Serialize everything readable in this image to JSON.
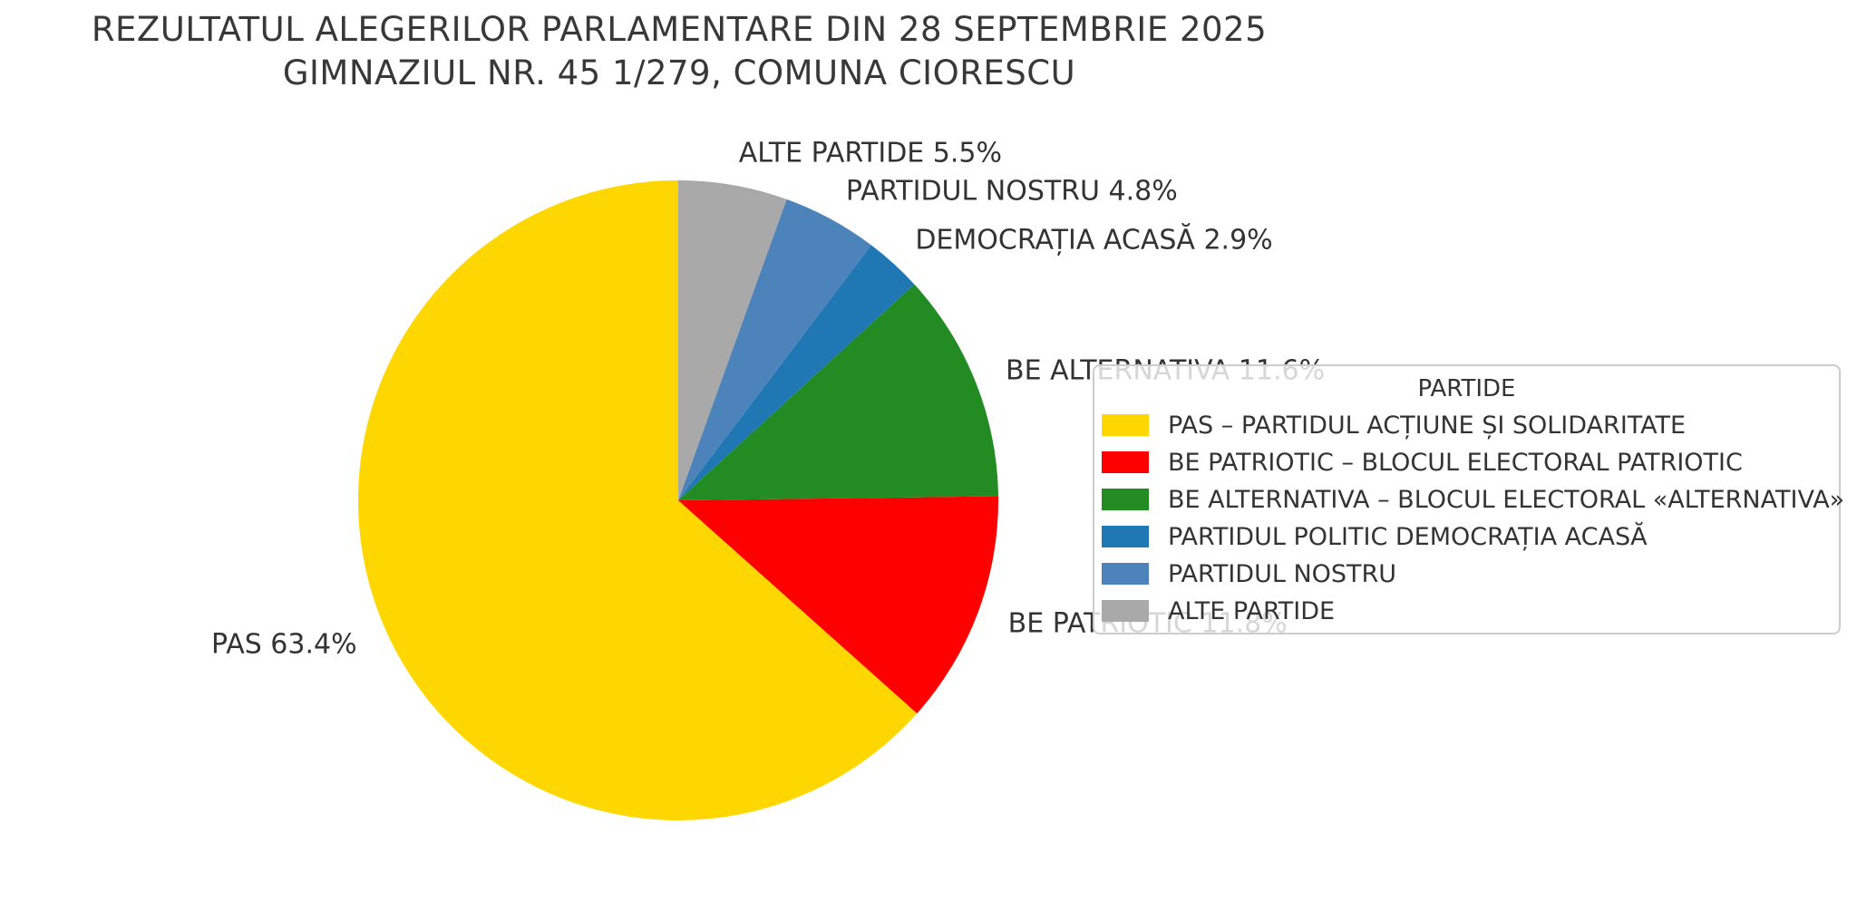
{
  "title": {
    "line1": "REZULTATUL ALEGERILOR PARLAMENTARE DIN 28 SEPTEMBRIE 2025",
    "line2": "GIMNAZIUL NR. 45 1/279, COMUNA CIORESCU"
  },
  "legend": {
    "title": "PARTIDE",
    "entries": [
      {
        "id": "pas",
        "label": "PAS – PARTIDUL ACȚIUNE ȘI SOLIDARITATE",
        "color": "#FFD700"
      },
      {
        "id": "be-patriotic",
        "label": "BE PATRIOTIC – BLOCUL ELECTORAL PATRIOTIC",
        "color": "#FF0000"
      },
      {
        "id": "be-alternativa",
        "label": "BE ALTERNATIVA – BLOCUL ELECTORAL «ALTERNATIVA»",
        "color": "#228B22"
      },
      {
        "id": "democratia-acasa",
        "label": "PARTIDUL POLITIC DEMOCRAȚIA ACASĂ",
        "color": "#1F77B4"
      },
      {
        "id": "partidul-nostru",
        "label": "PARTIDUL NOSTRU",
        "color": "#4C83BA"
      },
      {
        "id": "alte-partide",
        "label": "ALTE PARTIDE",
        "color": "#A9A9A9"
      }
    ]
  },
  "chart_data": {
    "type": "pie",
    "title": "REZULTATUL ALEGERILOR PARLAMENTARE DIN 28 SEPTEMBRIE 2025 — GIMNAZIUL NR. 45 1/279, COMUNA CIORESCU",
    "start_angle_deg": 90,
    "direction": "counterclockwise",
    "legend_position": "right",
    "legend_title": "PARTIDE",
    "slices": [
      {
        "id": "pas",
        "name": "PAS",
        "full_name": "PAS – PARTIDUL ACȚIUNE ȘI SOLIDARITATE",
        "value_pct": 63.4,
        "label": "PAS 63.4%",
        "color": "#FFD700"
      },
      {
        "id": "be-patriotic",
        "name": "BE PATRIOTIC",
        "full_name": "BE PATRIOTIC – BLOCUL ELECTORAL PATRIOTIC",
        "value_pct": 11.8,
        "label": "BE PATRIOTIC 11.8%",
        "color": "#FF0000"
      },
      {
        "id": "be-alternativa",
        "name": "BE ALTERNATIVA",
        "full_name": "BE ALTERNATIVA – BLOCUL ELECTORAL «ALTERNATIVA»",
        "value_pct": 11.6,
        "label": "BE ALTERNATIVA 11.6%",
        "color": "#228B22"
      },
      {
        "id": "democratia-acasa",
        "name": "DEMOCRAȚIA ACASĂ",
        "full_name": "PARTIDUL POLITIC DEMOCRAȚIA ACASĂ",
        "value_pct": 2.9,
        "label": "DEMOCRAȚIA ACASĂ 2.9%",
        "color": "#1F77B4"
      },
      {
        "id": "partidul-nostru",
        "name": "PARTIDUL NOSTRU",
        "full_name": "PARTIDUL NOSTRU",
        "value_pct": 4.8,
        "label": "PARTIDUL NOSTRU 4.8%",
        "color": "#4C83BA"
      },
      {
        "id": "alte-partide",
        "name": "ALTE PARTIDE",
        "full_name": "ALTE PARTIDE",
        "value_pct": 5.5,
        "label": "ALTE PARTIDE 5.5%",
        "color": "#A9A9A9"
      }
    ]
  }
}
